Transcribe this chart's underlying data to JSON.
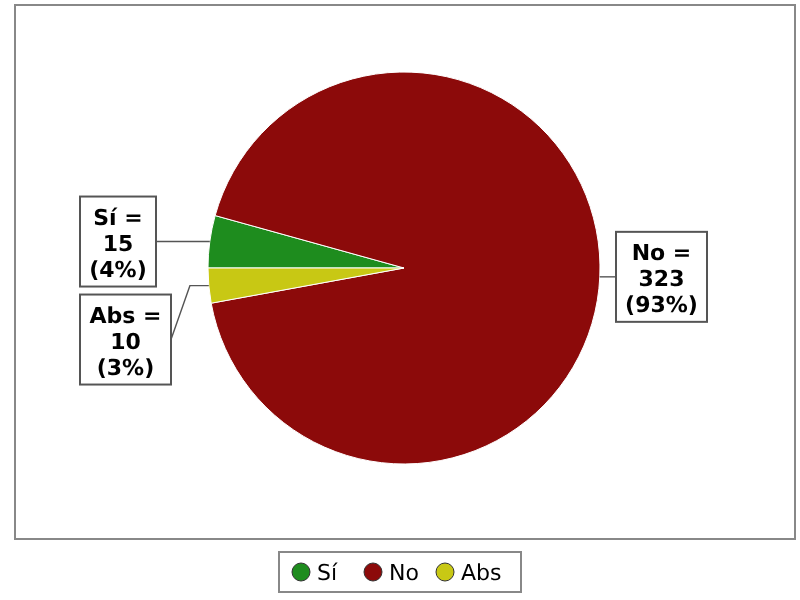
{
  "chart_data": {
    "type": "pie",
    "categories": [
      "Sí",
      "No",
      "Abs"
    ],
    "values": [
      15,
      323,
      10
    ],
    "colors": [
      "#1e8c1e",
      "#8c0a0a",
      "#c8c814"
    ],
    "value_labels": [
      "Sí =\n15\n(4%)",
      "No =\n323\n(93%)",
      "Abs =\n10\n(3%)"
    ],
    "legend": "bottom"
  }
}
